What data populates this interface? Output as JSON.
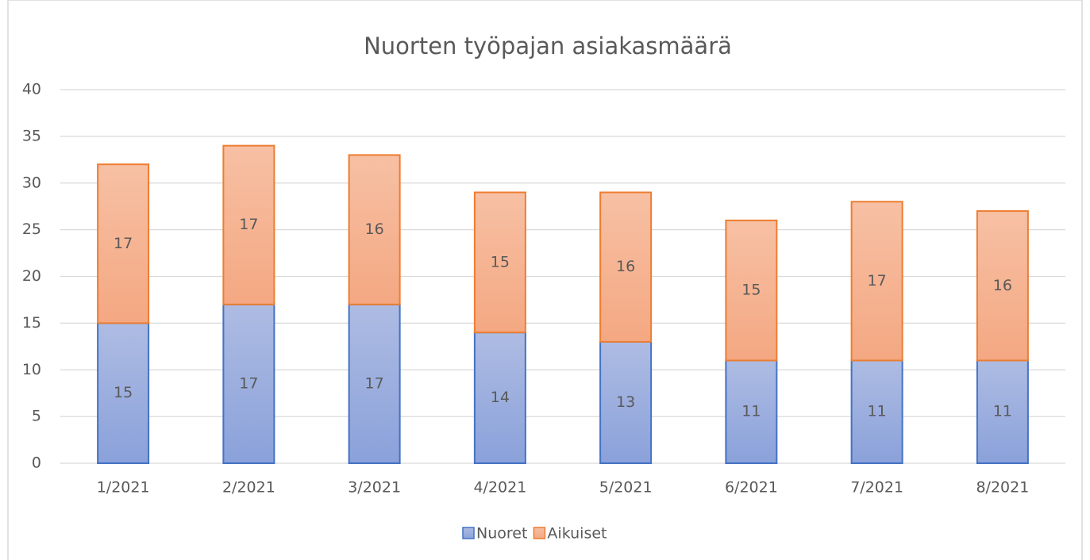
{
  "chart_data": {
    "type": "stacked_bar",
    "title": "Nuorten työpajan asiakasmäärä",
    "categories": [
      "1/2021",
      "2/2021",
      "3/2021",
      "4/2021",
      "5/2021",
      "6/2021",
      "7/2021",
      "8/2021"
    ],
    "series": [
      {
        "name": "Nuoret",
        "color": "#4472c4",
        "values": [
          15,
          17,
          17,
          14,
          13,
          11,
          11,
          11
        ]
      },
      {
        "name": "Aikuiset",
        "color": "#ed7d31",
        "values": [
          17,
          17,
          16,
          15,
          16,
          15,
          17,
          16
        ]
      }
    ],
    "ylim": [
      0,
      40
    ],
    "yticks": [
      0,
      5,
      10,
      15,
      20,
      25,
      30,
      35,
      40
    ],
    "grid": true,
    "legend": "bottom"
  }
}
